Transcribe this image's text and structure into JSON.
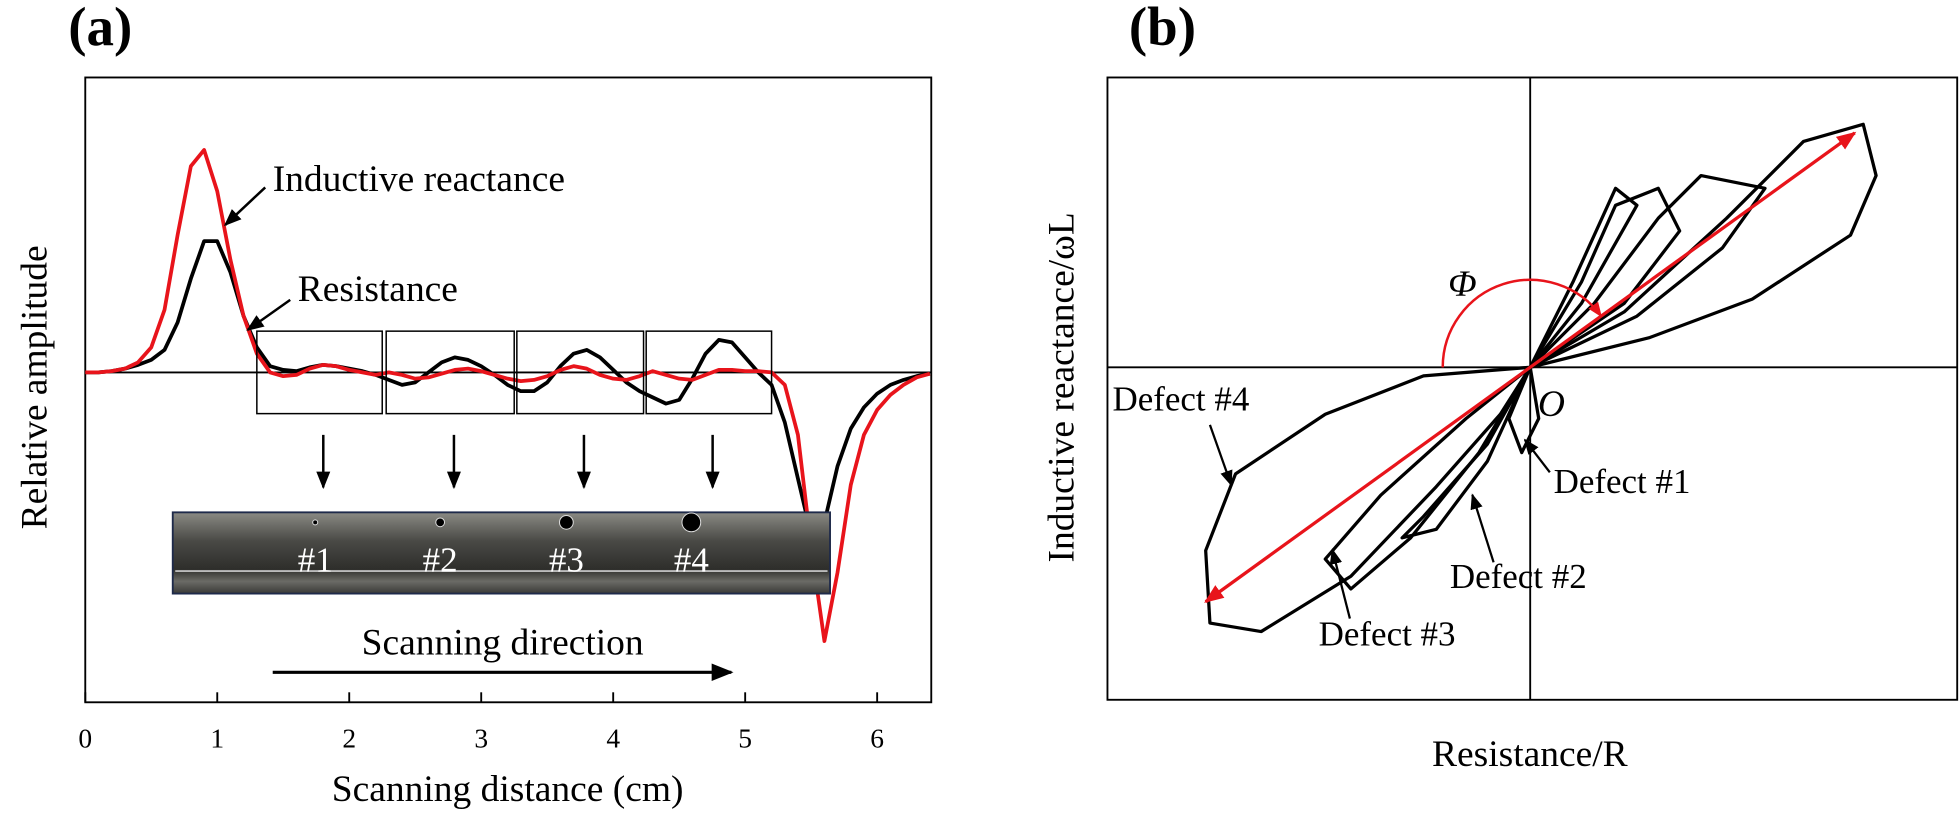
{
  "chart_data": [
    {
      "type": "line",
      "panel_label": "(a)",
      "x_label": "Scanning distance (cm)",
      "y_label": "Relative amplitude",
      "x": [
        0,
        0.1,
        0.2,
        0.3,
        0.4,
        0.5,
        0.6,
        0.7,
        0.8,
        0.9,
        1.0,
        1.1,
        1.2,
        1.3,
        1.4,
        1.5,
        1.6,
        1.7,
        1.8,
        1.9,
        2.0,
        2.1,
        2.2,
        2.3,
        2.4,
        2.5,
        2.6,
        2.7,
        2.8,
        2.9,
        3.0,
        3.1,
        3.2,
        3.3,
        3.4,
        3.5,
        3.6,
        3.7,
        3.8,
        3.9,
        4.0,
        4.1,
        4.2,
        4.3,
        4.4,
        4.5,
        4.6,
        4.7,
        4.8,
        4.9,
        5.0,
        5.1,
        5.2,
        5.3,
        5.4,
        5.5,
        5.6,
        5.7,
        5.8,
        5.9,
        6.0,
        6.1,
        6.2,
        6.3,
        6.4
      ],
      "xlim": [
        0,
        6.41
      ],
      "ylim": [
        -2.64,
        2.36
      ],
      "xticks": [
        0,
        1,
        2,
        3,
        4,
        5,
        6
      ],
      "series": [
        {
          "name": "Resistance",
          "color": "#000000",
          "values": [
            0,
            0,
            0.01,
            0.03,
            0.06,
            0.1,
            0.18,
            0.4,
            0.75,
            1.05,
            1.05,
            0.8,
            0.45,
            0.2,
            0.05,
            0.02,
            0.01,
            0.04,
            0.06,
            0.05,
            0.03,
            0.01,
            -0.02,
            -0.06,
            -0.1,
            -0.08,
            0,
            0.08,
            0.12,
            0.1,
            0.05,
            -0.02,
            -0.1,
            -0.15,
            -0.15,
            -0.08,
            0.05,
            0.15,
            0.18,
            0.12,
            0.02,
            -0.08,
            -0.15,
            -0.2,
            -0.25,
            -0.22,
            -0.05,
            0.15,
            0.26,
            0.24,
            0.12,
            0,
            -0.1,
            -0.4,
            -0.85,
            -1.3,
            -1.2,
            -0.75,
            -0.45,
            -0.28,
            -0.17,
            -0.1,
            -0.06,
            -0.03,
            -0.01
          ]
        },
        {
          "name": "Inductive reactance",
          "color": "#e8141b",
          "values": [
            0,
            0,
            0.01,
            0.03,
            0.08,
            0.2,
            0.5,
            1.1,
            1.65,
            1.78,
            1.45,
            0.9,
            0.45,
            0.15,
            0,
            -0.03,
            -0.02,
            0.03,
            0.06,
            0.05,
            0.02,
            0,
            -0.02,
            0,
            -0.02,
            -0.05,
            -0.04,
            -0.01,
            0.02,
            0.03,
            0.01,
            -0.02,
            -0.05,
            -0.07,
            -0.06,
            -0.03,
            0.02,
            0.05,
            0.03,
            -0.02,
            -0.05,
            -0.06,
            -0.03,
            0.01,
            -0.02,
            -0.05,
            -0.06,
            -0.02,
            0.02,
            0.02,
            0.01,
            0.01,
            0,
            -0.1,
            -0.5,
            -1.4,
            -2.15,
            -1.6,
            -0.9,
            -0.5,
            -0.3,
            -0.18,
            -0.1,
            -0.04,
            -0.01
          ]
        }
      ],
      "windows": [
        [
          1.3,
          2.25
        ],
        [
          2.28,
          3.25
        ],
        [
          3.27,
          4.23
        ],
        [
          4.25,
          5.2
        ]
      ],
      "specimen_labels": [
        "#1",
        "#2",
        "#3",
        "#4"
      ],
      "direction_label": "Scanning direction"
    },
    {
      "type": "line",
      "panel_label": "(b)",
      "x_label": "Resistance/R",
      "y_label": "Inductive reactance/ωL",
      "xlim": [
        -0.99,
        1.0
      ],
      "ylim": [
        -0.78,
        0.68
      ],
      "series": [
        {
          "name": "Defect #1",
          "color": "#000000",
          "x": [
            0,
            0.1,
            0.2,
            0.25,
            0.12,
            0,
            -0.05,
            -0.02,
            0.02,
            0
          ],
          "y": [
            0,
            0.2,
            0.42,
            0.38,
            0.15,
            0,
            -0.12,
            -0.2,
            -0.12,
            0
          ]
        },
        {
          "name": "Defect #2",
          "color": "#000000",
          "x": [
            0,
            0.12,
            0.2,
            0.3,
            0.35,
            0.22,
            0,
            -0.1,
            -0.25,
            -0.3,
            -0.22,
            -0.1,
            0
          ],
          "y": [
            0,
            0.2,
            0.38,
            0.42,
            0.32,
            0.15,
            0,
            -0.18,
            -0.35,
            -0.4,
            -0.38,
            -0.22,
            0
          ]
        },
        {
          "name": "Defect #3",
          "color": "#000000",
          "x": [
            0,
            0.15,
            0.3,
            0.4,
            0.55,
            0.45,
            0.25,
            0,
            -0.15,
            -0.35,
            -0.48,
            -0.42,
            -0.28,
            -0.12,
            0
          ],
          "y": [
            0,
            0.15,
            0.35,
            0.45,
            0.42,
            0.28,
            0.12,
            0,
            -0.12,
            -0.3,
            -0.45,
            -0.52,
            -0.4,
            -0.2,
            0
          ]
        },
        {
          "name": "Defect #4",
          "color": "#000000",
          "x": [
            0,
            0.22,
            0.46,
            0.64,
            0.78,
            0.81,
            0.75,
            0.52,
            0.28,
            0,
            -0.25,
            -0.48,
            -0.69,
            -0.76,
            -0.75,
            -0.63,
            -0.42,
            -0.22,
            -0.07,
            0
          ],
          "y": [
            0,
            0.13,
            0.35,
            0.53,
            0.57,
            0.45,
            0.31,
            0.16,
            0.07,
            0,
            -0.02,
            -0.11,
            -0.25,
            -0.43,
            -0.6,
            -0.62,
            -0.49,
            -0.28,
            -0.11,
            0
          ]
        }
      ],
      "phase_vector": {
        "x": [
          -0.76,
          0.76
        ],
        "y": [
          -0.55,
          0.55
        ],
        "color": "#e8141b"
      },
      "angle_label": "Φ",
      "origin_label": "O"
    }
  ]
}
